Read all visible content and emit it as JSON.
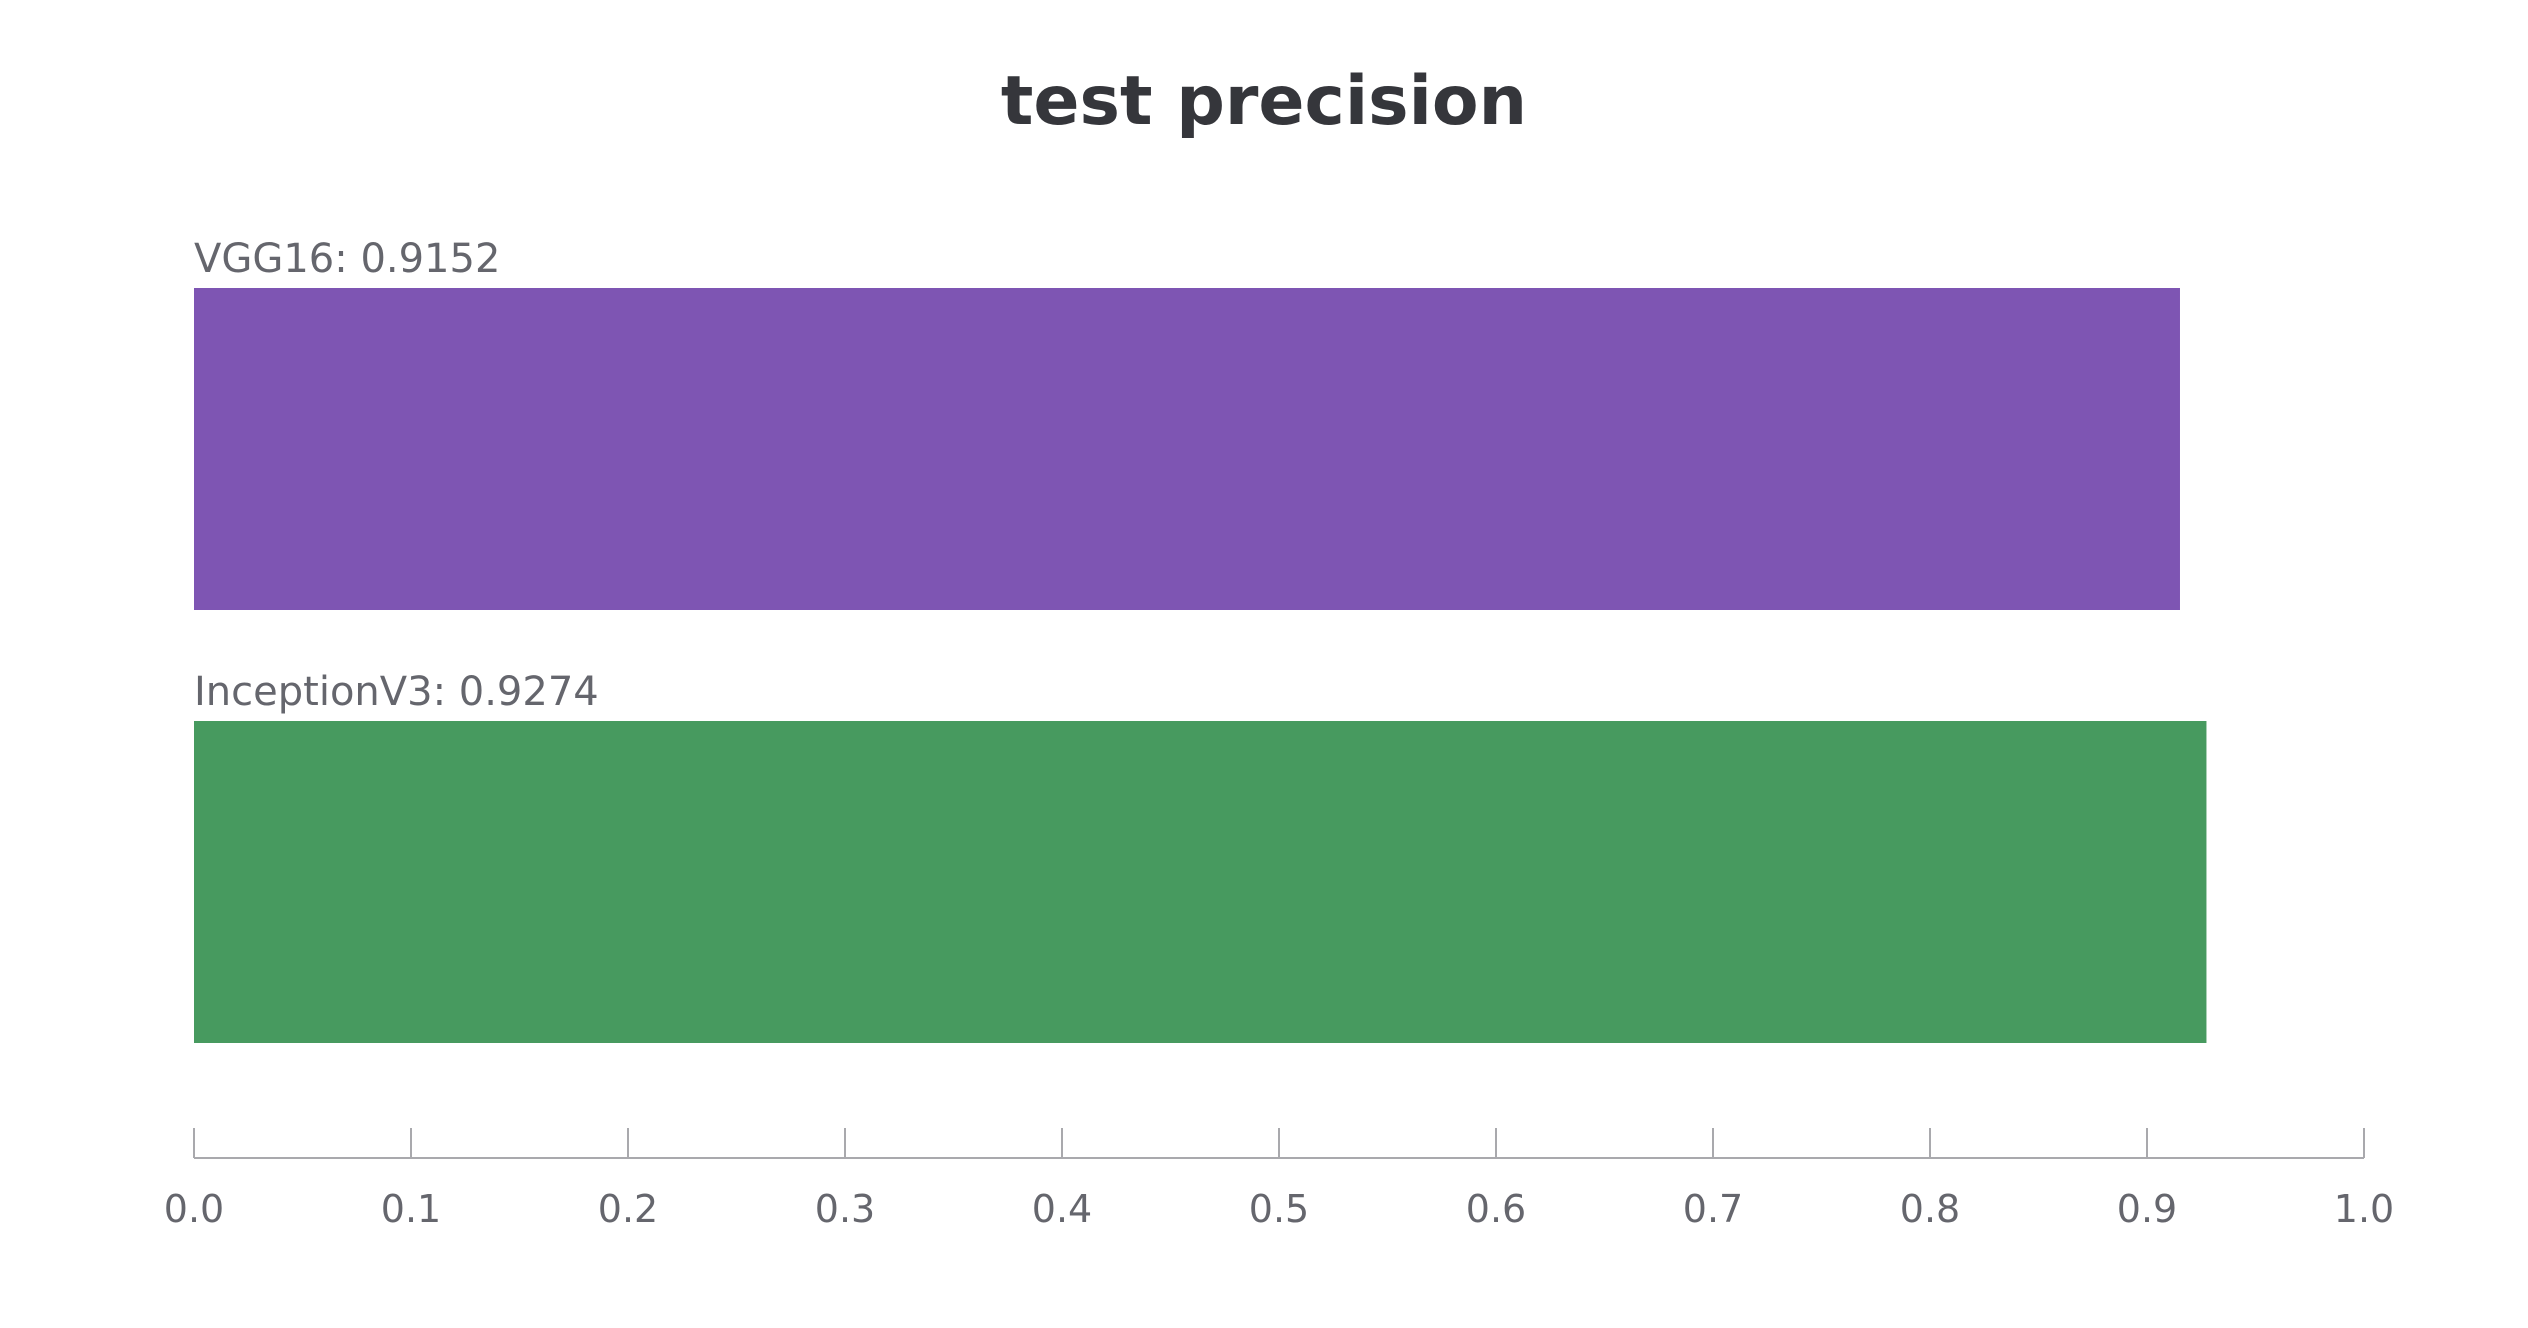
{
  "chart_data": {
    "type": "bar",
    "orientation": "horizontal",
    "title": "test precision",
    "xlabel": "",
    "ylabel": "",
    "xlim": [
      0.0,
      1.0
    ],
    "xticks": [
      "0.0",
      "0.1",
      "0.2",
      "0.3",
      "0.4",
      "0.5",
      "0.6",
      "0.7",
      "0.8",
      "0.9",
      "1.0"
    ],
    "grid": false,
    "categories": [
      "VGG16",
      "InceptionV3"
    ],
    "values": [
      0.9152,
      0.9274
    ],
    "bar_labels": [
      "VGG16: 0.9152",
      "InceptionV3: 0.9274"
    ],
    "colors": [
      "#7e55b3",
      "#479a5f"
    ],
    "text_color": "#65666d",
    "axis_color": "#a9a9ad"
  }
}
